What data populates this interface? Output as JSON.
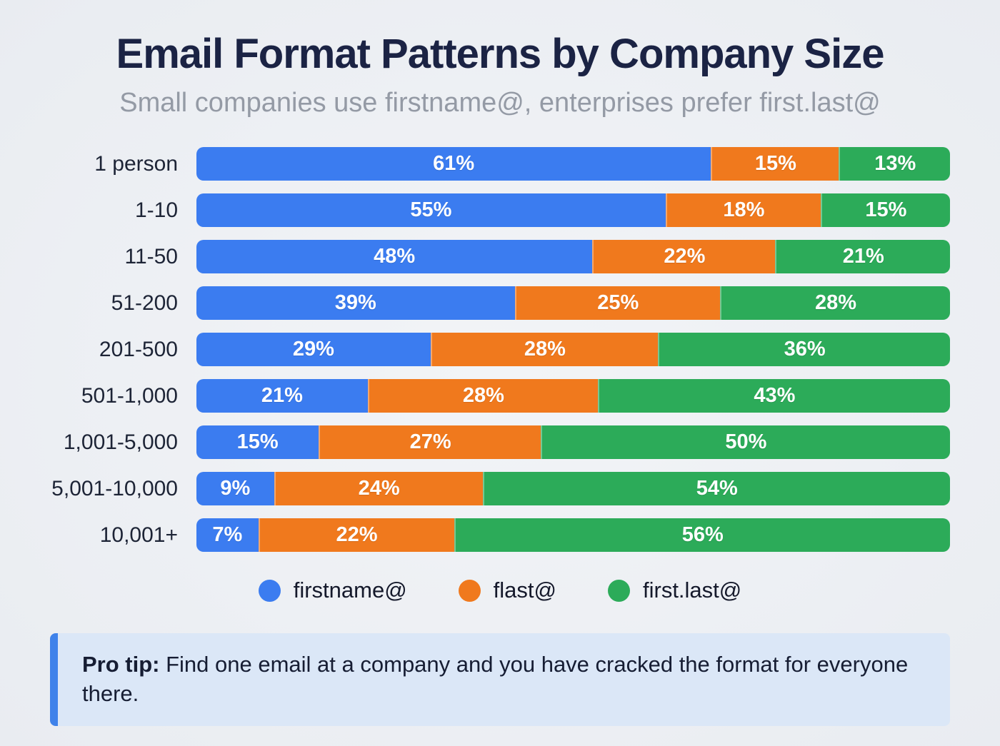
{
  "title": "Email Format Patterns by Company Size",
  "subtitle": "Small companies use firstname@, enterprises prefer first.last@",
  "colors": {
    "background": "#edeff3",
    "title": "#1b2344",
    "subtitle": "#949aa5",
    "blue": "#3b7cf0",
    "orange": "#f0791d",
    "green": "#2cab59",
    "protip_bg": "#dbe7f7",
    "protip_border": "#3f82ea"
  },
  "chart_data": {
    "type": "bar",
    "orientation": "horizontal",
    "stacked": true,
    "normalized_to_full_width": true,
    "title": "Email Format Patterns by Company Size",
    "subtitle": "Small companies use firstname@, enterprises prefer first.last@",
    "categories": [
      "1 person",
      "1-10",
      "11-50",
      "51-200",
      "201-500",
      "501-1,000",
      "1,001-5,000",
      "5,001-10,000",
      "10,001+"
    ],
    "series": [
      {
        "name": "firstname@",
        "color": "#3b7cf0",
        "values": [
          61,
          55,
          48,
          39,
          29,
          21,
          15,
          9,
          7
        ]
      },
      {
        "name": "flast@",
        "color": "#f0791d",
        "values": [
          15,
          18,
          22,
          25,
          28,
          28,
          27,
          24,
          22
        ]
      },
      {
        "name": "first.last@",
        "color": "#2cab59",
        "values": [
          13,
          15,
          21,
          28,
          36,
          43,
          50,
          54,
          56
        ]
      }
    ],
    "value_suffix": "%",
    "legend_position": "bottom",
    "grid": false
  },
  "legend": {
    "items": [
      "firstname@",
      "flast@",
      "first.last@"
    ]
  },
  "protip": {
    "label": "Pro tip:",
    "text": " Find one email at a company and you have cracked the format for everyone there."
  }
}
